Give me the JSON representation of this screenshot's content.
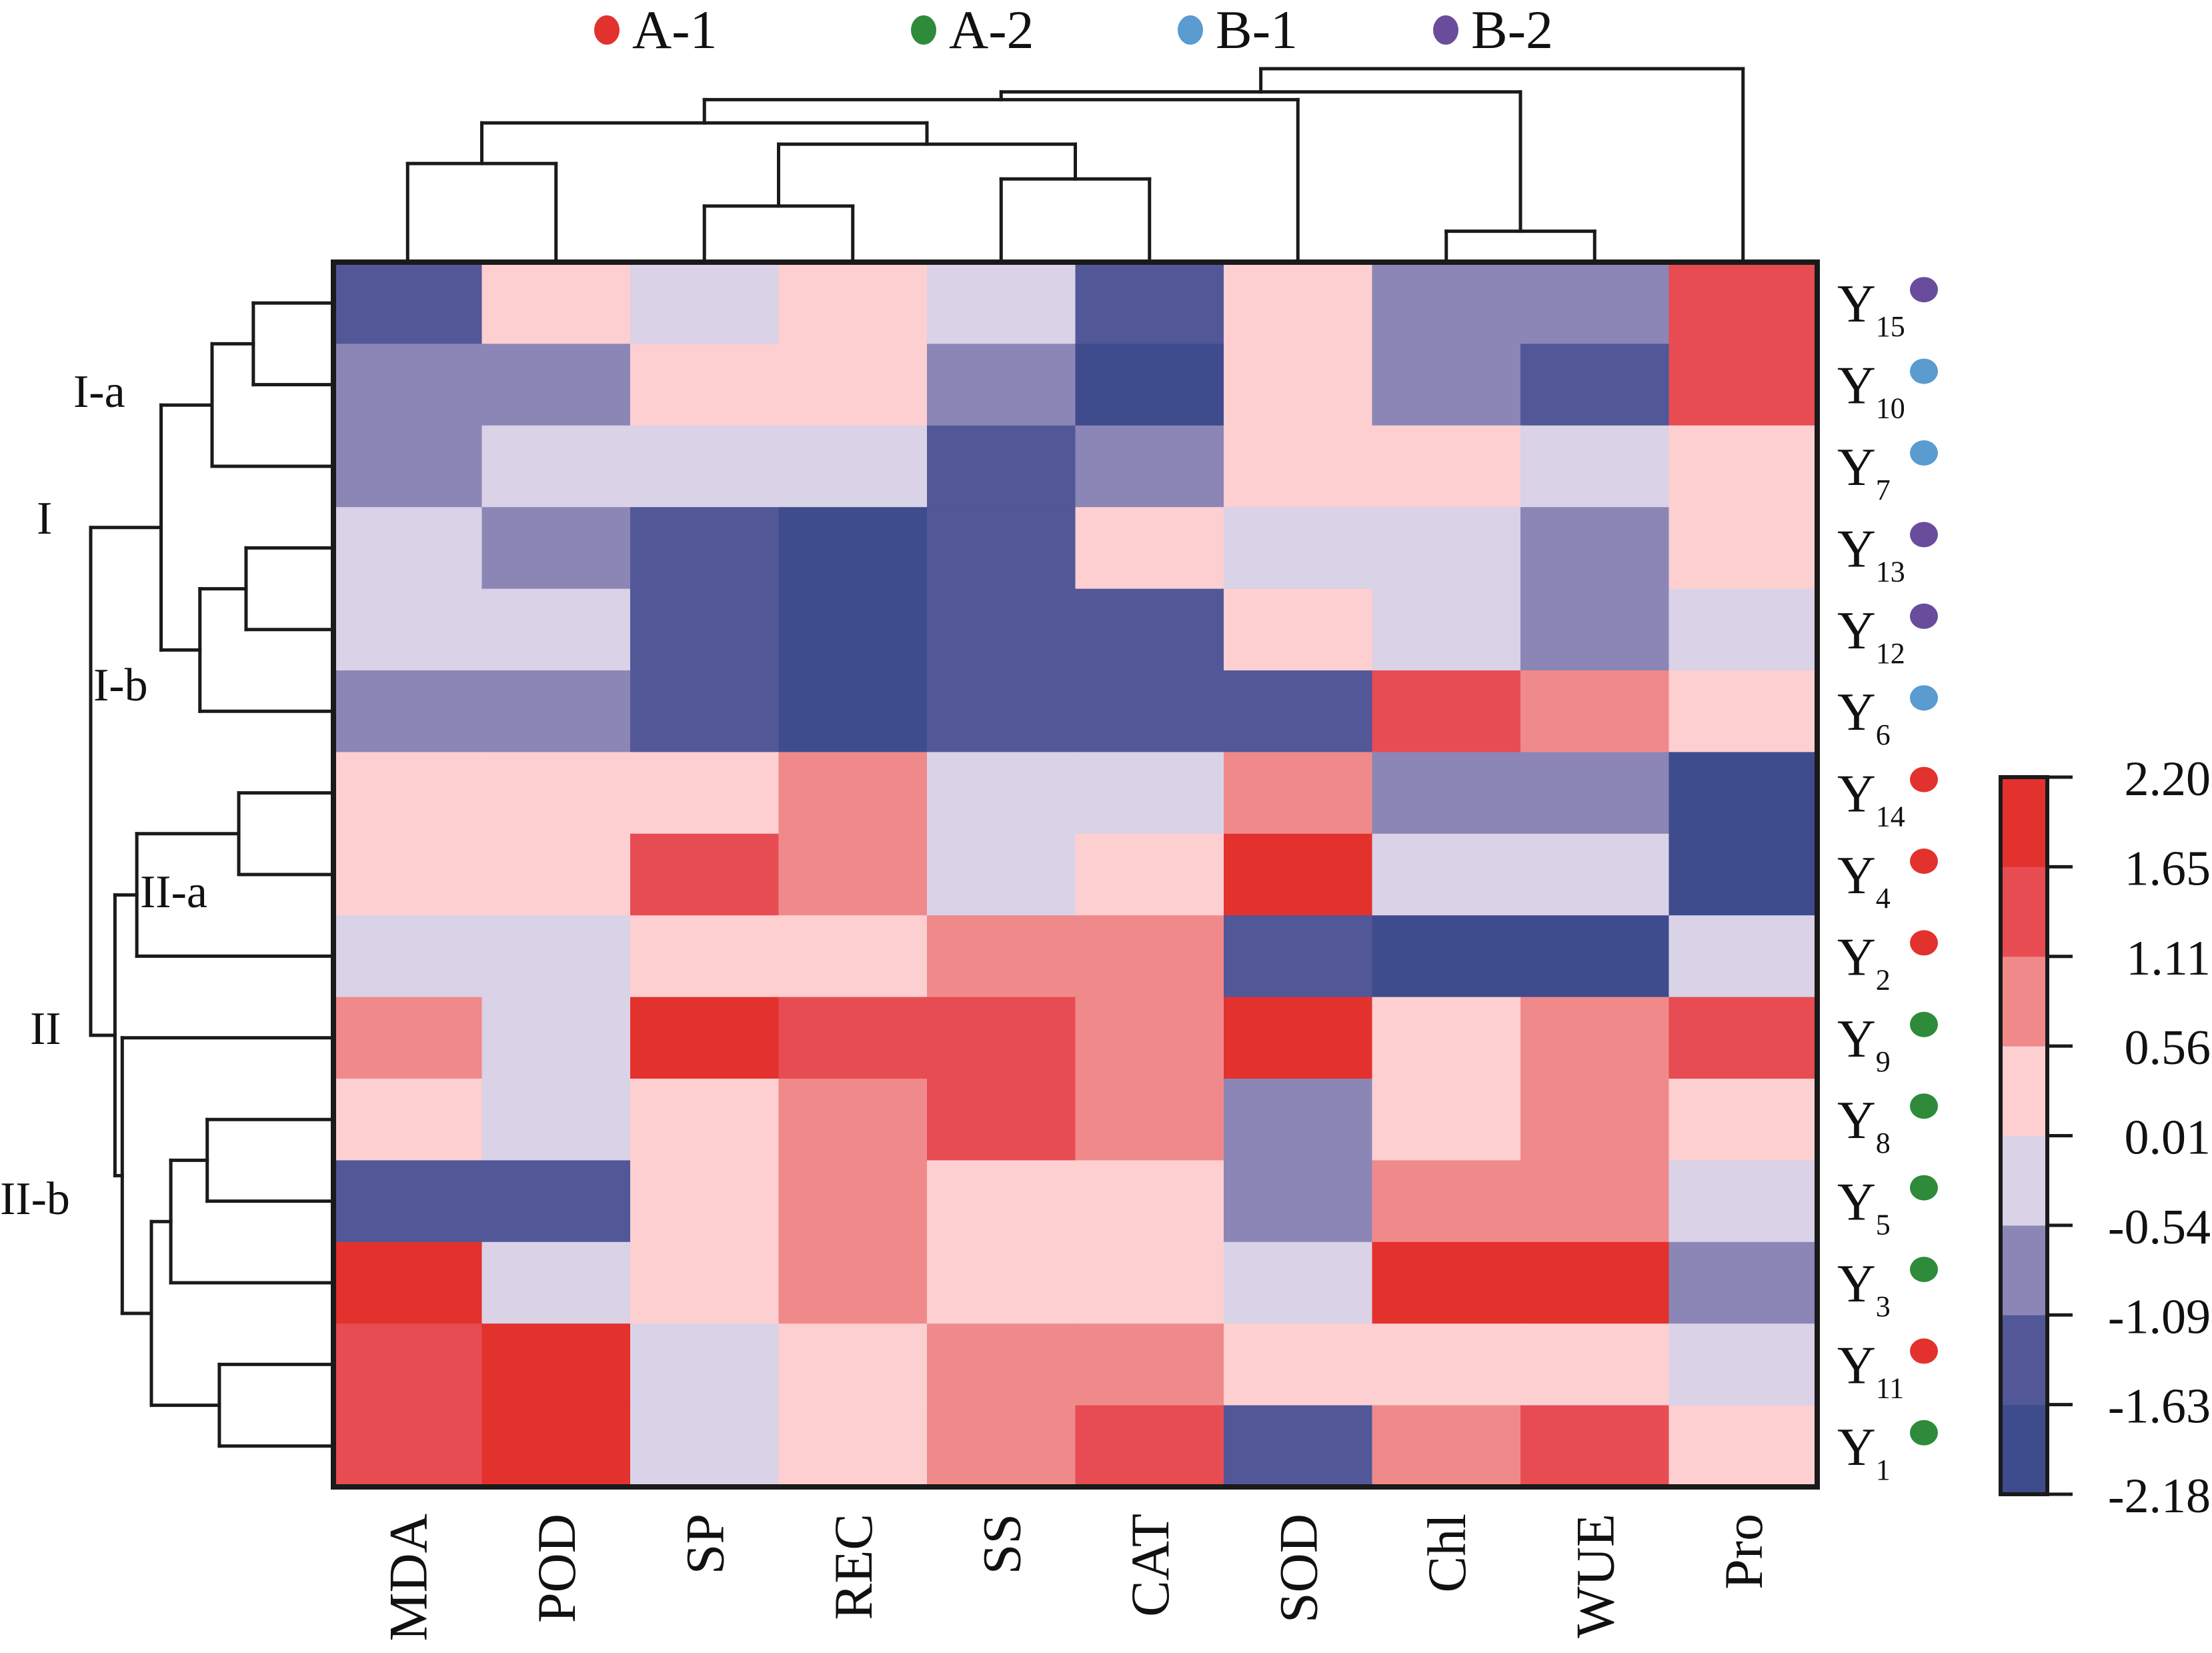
{
  "chart_data": {
    "type": "heatmap",
    "title": "",
    "legend": {
      "placement": "top",
      "groups": [
        {
          "label": "A-1",
          "color": "#E3312E"
        },
        {
          "label": "A-2",
          "color": "#2E8B3A"
        },
        {
          "label": "B-1",
          "color": "#5A9BD0"
        },
        {
          "label": "B-2",
          "color": "#6A4C9C"
        }
      ]
    },
    "columns": [
      "MDA",
      "POD",
      "SP",
      "REC",
      "SS",
      "CAT",
      "SOD",
      "Chl",
      "WUE",
      "Pro"
    ],
    "rows": [
      {
        "label": "Y",
        "sub": "15",
        "group": "B-2"
      },
      {
        "label": "Y",
        "sub": "10",
        "group": "B-1"
      },
      {
        "label": "Y",
        "sub": "7",
        "group": "B-1"
      },
      {
        "label": "Y",
        "sub": "13",
        "group": "B-2"
      },
      {
        "label": "Y",
        "sub": "12",
        "group": "B-2"
      },
      {
        "label": "Y",
        "sub": "6",
        "group": "B-1"
      },
      {
        "label": "Y",
        "sub": "14",
        "group": "A-1"
      },
      {
        "label": "Y",
        "sub": "4",
        "group": "A-1"
      },
      {
        "label": "Y",
        "sub": "2",
        "group": "A-1"
      },
      {
        "label": "Y",
        "sub": "9",
        "group": "A-2"
      },
      {
        "label": "Y",
        "sub": "8",
        "group": "A-2"
      },
      {
        "label": "Y",
        "sub": "5",
        "group": "A-2"
      },
      {
        "label": "Y",
        "sub": "3",
        "group": "A-2"
      },
      {
        "label": "Y",
        "sub": "11",
        "group": "A-1"
      },
      {
        "label": "Y",
        "sub": "1",
        "group": "A-2"
      }
    ],
    "values": [
      [
        -1.36,
        0.28,
        -0.27,
        0.28,
        -0.27,
        -1.36,
        0.28,
        -0.82,
        -0.82,
        1.38
      ],
      [
        -0.82,
        -0.82,
        0.28,
        0.28,
        -0.82,
        -1.9,
        0.28,
        -0.82,
        -1.36,
        1.38
      ],
      [
        -0.82,
        -0.27,
        -0.27,
        -0.27,
        -1.36,
        -0.82,
        0.28,
        0.28,
        -0.27,
        0.28
      ],
      [
        -0.27,
        -0.82,
        -1.36,
        -1.9,
        -1.36,
        0.28,
        -0.27,
        -0.27,
        -0.82,
        0.28
      ],
      [
        -0.27,
        -0.27,
        -1.36,
        -1.9,
        -1.36,
        -1.36,
        0.28,
        -0.27,
        -0.82,
        -0.27
      ],
      [
        -0.82,
        -0.82,
        -1.36,
        -1.9,
        -1.36,
        -1.36,
        -1.36,
        1.38,
        0.83,
        0.28
      ],
      [
        0.28,
        0.28,
        0.28,
        0.83,
        -0.27,
        -0.27,
        0.83,
        -0.82,
        -0.82,
        -1.9
      ],
      [
        0.28,
        0.28,
        1.38,
        0.83,
        -0.27,
        0.28,
        1.93,
        -0.27,
        -0.27,
        -1.9
      ],
      [
        -0.27,
        -0.27,
        0.28,
        0.28,
        0.83,
        0.83,
        -1.36,
        -1.9,
        -1.9,
        -0.27
      ],
      [
        0.83,
        -0.27,
        1.93,
        1.38,
        1.38,
        0.83,
        1.93,
        0.28,
        0.83,
        1.38
      ],
      [
        0.28,
        -0.27,
        0.28,
        0.83,
        1.38,
        0.83,
        -0.82,
        0.28,
        0.83,
        0.28
      ],
      [
        -1.36,
        -1.36,
        0.28,
        0.83,
        0.28,
        0.28,
        -0.82,
        0.83,
        0.83,
        -0.27
      ],
      [
        1.93,
        -0.27,
        0.28,
        0.83,
        0.28,
        0.28,
        -0.27,
        1.93,
        1.93,
        -0.82
      ],
      [
        1.38,
        1.93,
        -0.27,
        0.28,
        0.83,
        0.83,
        0.28,
        0.28,
        0.28,
        -0.27
      ],
      [
        1.38,
        1.93,
        -0.27,
        0.28,
        0.83,
        1.38,
        -1.36,
        0.83,
        1.38,
        0.28
      ]
    ],
    "colorbar": {
      "ticks": [
        "2.20",
        "1.65",
        "1.11",
        "0.56",
        "0.01",
        "-0.54",
        "-1.09",
        "-1.63",
        "-2.18"
      ],
      "breaks": [
        -2.18,
        -1.63,
        -1.09,
        -0.54,
        0.01,
        0.56,
        1.11,
        1.65,
        2.2
      ],
      "colors": [
        "#3E4C8E",
        "#525797",
        "#8B86B6",
        "#DAD2E6",
        "#FDCFD1",
        "#F08A8A",
        "#E74C53",
        "#E3312E"
      ],
      "range": [
        -2.18,
        2.2
      ]
    },
    "column_dendrogram": {
      "h": 1.0,
      "children": [
        {
          "h": 0.88,
          "children": [
            {
              "h": 0.84,
              "children": [
                {
                  "h": 0.72,
                  "children": [
                    {
                      "h": 0.51,
                      "children": [
                        {
                          "leaf": 0
                        },
                        {
                          "leaf": 1
                        }
                      ]
                    },
                    {
                      "h": 0.61,
                      "children": [
                        {
                          "h": 0.29,
                          "children": [
                            {
                              "leaf": 2
                            },
                            {
                              "leaf": 3
                            }
                          ]
                        },
                        {
                          "h": 0.43,
                          "children": [
                            {
                              "leaf": 4
                            },
                            {
                              "leaf": 5
                            }
                          ]
                        }
                      ]
                    }
                  ]
                },
                {
                  "leaf": 6
                }
              ]
            },
            {
              "h": 0.16,
              "children": [
                {
                  "leaf": 7
                },
                {
                  "leaf": 8
                }
              ]
            }
          ]
        },
        {
          "leaf": 9
        }
      ]
    },
    "row_dendrogram": {
      "h": 1.0,
      "children": [
        {
          "h": 0.71,
          "children": [
            {
              "h": 0.5,
              "children": [
                {
                  "h": 0.33,
                  "children": [
                    {
                      "leaf": 0
                    },
                    {
                      "leaf": 1
                    }
                  ]
                },
                {
                  "leaf": 2
                }
              ]
            },
            {
              "h": 0.55,
              "children": [
                {
                  "h": 0.36,
                  "children": [
                    {
                      "leaf": 3
                    },
                    {
                      "leaf": 4
                    }
                  ]
                },
                {
                  "leaf": 5
                }
              ]
            }
          ]
        },
        {
          "h": 0.9,
          "children": [
            {
              "h": 0.81,
              "children": [
                {
                  "h": 0.39,
                  "children": [
                    {
                      "leaf": 6
                    },
                    {
                      "leaf": 7
                    }
                  ]
                },
                {
                  "leaf": 8
                }
              ]
            },
            {
              "h": 0.87,
              "children": [
                {
                  "leaf": 9
                },
                {
                  "h": 0.75,
                  "children": [
                    {
                      "h": 0.67,
                      "children": [
                        {
                          "h": 0.52,
                          "children": [
                            {
                              "leaf": 10
                            },
                            {
                              "leaf": 11
                            }
                          ]
                        },
                        {
                          "leaf": 12
                        }
                      ]
                    },
                    {
                      "h": 0.47,
                      "children": [
                        {
                          "leaf": 13
                        },
                        {
                          "leaf": 14
                        }
                      ]
                    }
                  ]
                }
              ]
            }
          ]
        }
      ]
    },
    "cluster_labels": [
      {
        "text": "I-a",
        "anchor_rows": [
          0,
          2
        ]
      },
      {
        "text": "I",
        "anchor_rows": [
          2,
          3
        ]
      },
      {
        "text": "I-b",
        "anchor_rows": [
          4,
          5
        ]
      },
      {
        "text": "II-a",
        "anchor_rows": [
          7,
          7
        ]
      },
      {
        "text": "II",
        "anchor_rows": [
          8,
          9
        ]
      },
      {
        "text": "II-b",
        "anchor_rows": [
          10,
          11
        ]
      }
    ]
  }
}
